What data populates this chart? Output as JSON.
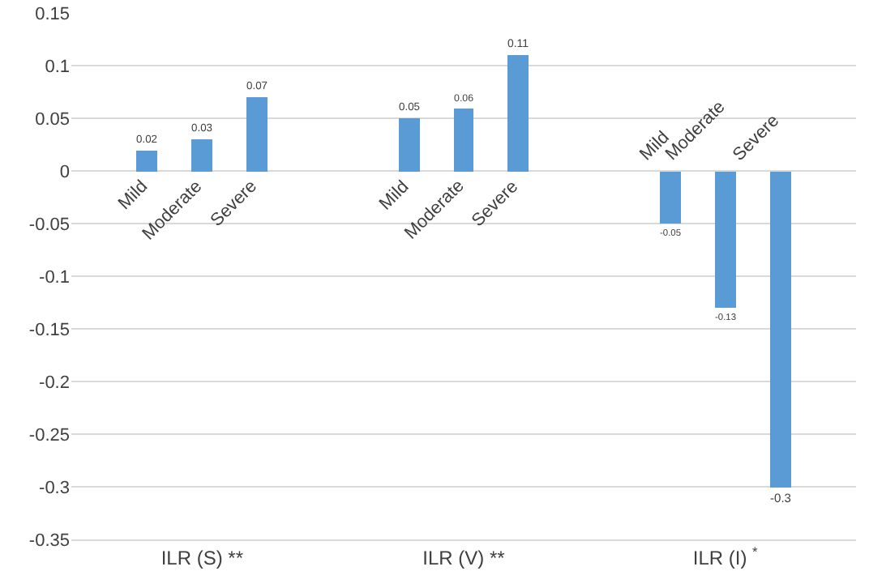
{
  "chart_data": {
    "type": "bar",
    "categories": [
      "ILR (S) **",
      "ILR (V) **",
      "ILR (I) $^{*}$"
    ],
    "series": [
      {
        "name": "Mild",
        "color": "#5b9bd5",
        "values": [
          0.02,
          0.05,
          -0.05
        ]
      },
      {
        "name": "Moderate",
        "color": "#5b9bd5",
        "values": [
          0.03,
          0.06,
          -0.13
        ]
      },
      {
        "name": "Severe",
        "color": "#5b9bd5",
        "values": [
          0.07,
          0.11,
          -0.3
        ]
      }
    ],
    "ylim": [
      -0.35,
      0.15
    ],
    "yticks": [
      0.15,
      0.1,
      0.05,
      0,
      -0.05,
      -0.1,
      -0.15,
      -0.2,
      -0.25,
      -0.3,
      -0.35
    ],
    "grid": "y",
    "legend": false,
    "data_labels": true
  }
}
